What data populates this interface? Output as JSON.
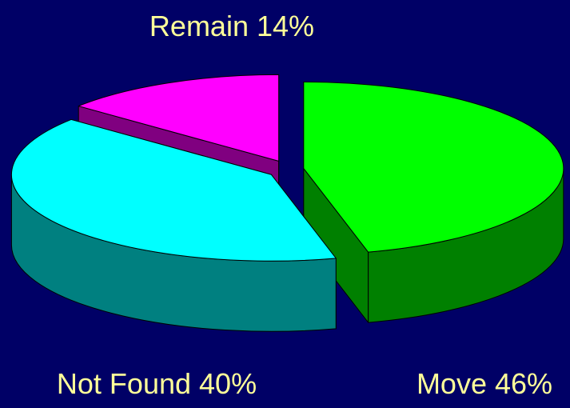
{
  "chart_data": {
    "type": "pie",
    "categories": [
      "Move",
      "Not Found",
      "Remain"
    ],
    "values": [
      46,
      40,
      14
    ],
    "value_labels": [
      "46%",
      "40%",
      "14%"
    ],
    "colors": [
      "#00ff00",
      "#00ffff",
      "#ff00ff"
    ],
    "side_colors": [
      "#008000",
      "#008080",
      "#800080"
    ],
    "exploded": true,
    "three_d": true
  }
}
